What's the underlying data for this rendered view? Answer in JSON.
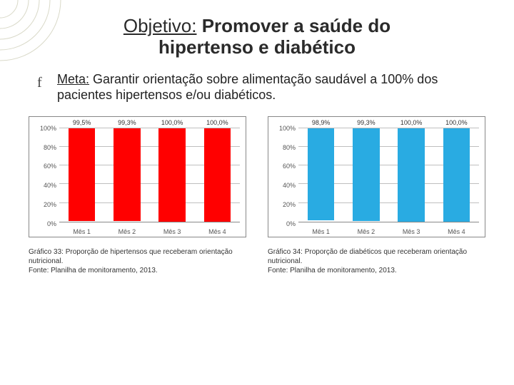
{
  "title": {
    "line1_prefix": "Objetivo:",
    "line1_rest": " Promover a saúde do",
    "line2": "hipertenso e diabético"
  },
  "meta": {
    "label": "Meta:",
    "text": " Garantir orientação sobre alimentação saudável a 100% dos pacientes hipertensos e/ou diabéticos."
  },
  "chart_left": {
    "type": "bar",
    "categories": [
      "Mês 1",
      "Mês 2",
      "Mês 3",
      "Mês 4"
    ],
    "values": [
      99.5,
      99.3,
      100.0,
      100.0
    ],
    "value_labels": [
      "99,5%",
      "99,3%",
      "100,0%",
      "100,0%"
    ],
    "bar_color": "#ff0000",
    "border_color": "#888888",
    "grid_color": "#bfbfbf",
    "ylim_max": 100,
    "ytick_step": 20,
    "yticks": [
      "0%",
      "20%",
      "40%",
      "60%",
      "80%",
      "100%"
    ],
    "caption": "Gráfico 33: Proporção de hipertensos que receberam orientação nutricional.\nFonte: Planilha de monitoramento, 2013."
  },
  "chart_right": {
    "type": "bar",
    "categories": [
      "Mês 1",
      "Mês 2",
      "Mês 3",
      "Mês 4"
    ],
    "values": [
      98.9,
      99.3,
      100.0,
      100.0
    ],
    "value_labels": [
      "98,9%",
      "99,3%",
      "100,0%",
      "100,0%"
    ],
    "bar_color": "#29abe2",
    "border_color": "#888888",
    "grid_color": "#bfbfbf",
    "ylim_max": 100,
    "ytick_step": 20,
    "yticks": [
      "0%",
      "20%",
      "40%",
      "60%",
      "80%",
      "100%"
    ],
    "caption": "Gráfico 34: Proporção de diabéticos que receberam orientação nutricional.\nFonte: Planilha de monitoramento, 2013."
  },
  "decoration": {
    "corner_color": "#d9d9c8"
  }
}
